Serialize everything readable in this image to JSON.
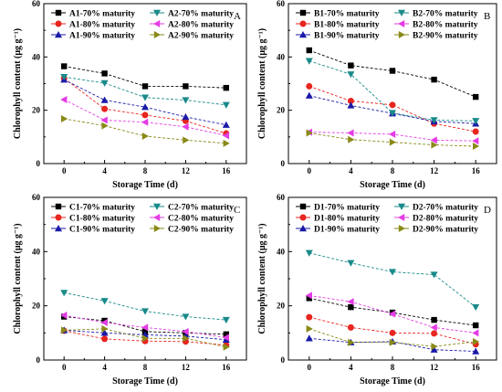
{
  "figure": {
    "title": ""
  },
  "chart_data": [
    {
      "panel": "A",
      "type": "line",
      "x": [
        0,
        4,
        8,
        12,
        16
      ],
      "xlabel": "Storage Time (d)",
      "ylabel": "Chlorophyll content (μg g⁻¹)",
      "xlim": [
        -2,
        18
      ],
      "ylim": [
        0,
        60
      ],
      "xticks": [
        0,
        4,
        8,
        12,
        16
      ],
      "yticks": [
        0,
        20,
        40,
        60
      ],
      "grid": false,
      "legend": "top-left, two columns",
      "series": [
        {
          "name": "A1-70% maturity",
          "values": [
            36.5,
            33.8,
            29.0,
            29.0,
            28.4
          ],
          "color": "#000000",
          "marker": "square"
        },
        {
          "name": "A1-80% maturity",
          "values": [
            32.0,
            20.5,
            18.2,
            16.0,
            11.3
          ],
          "color": "#e8251f",
          "marker": "circle"
        },
        {
          "name": "A1-90% maturity",
          "values": [
            31.5,
            23.8,
            21.2,
            17.5,
            14.5
          ],
          "color": "#1a1aa8",
          "marker": "triangle-up"
        },
        {
          "name": "A2-70% maturity",
          "values": [
            32.5,
            30.2,
            24.8,
            23.8,
            22.0
          ],
          "color": "#1a8a8a",
          "marker": "triangle-down"
        },
        {
          "name": "A2-80% maturity",
          "values": [
            24.0,
            16.3,
            15.5,
            13.8,
            10.5
          ],
          "color": "#e43ce4",
          "marker": "triangle-left"
        },
        {
          "name": "A2-90% maturity",
          "values": [
            16.8,
            14.2,
            10.3,
            8.8,
            7.6
          ],
          "color": "#8a8a18",
          "marker": "triangle-right"
        }
      ]
    },
    {
      "panel": "B",
      "type": "line",
      "x": [
        0,
        4,
        8,
        12,
        16
      ],
      "xlabel": "Storage Time (d)",
      "ylabel": "Chlorophyll content (μg g⁻¹)",
      "xlim": [
        -2,
        18
      ],
      "ylim": [
        0,
        60
      ],
      "xticks": [
        0,
        4,
        8,
        12,
        16
      ],
      "yticks": [
        0,
        20,
        40,
        60
      ],
      "grid": false,
      "legend": "top-left, two columns",
      "series": [
        {
          "name": "B1-70% maturity",
          "values": [
            42.5,
            36.8,
            34.8,
            31.5,
            25.0
          ],
          "color": "#000000",
          "marker": "square"
        },
        {
          "name": "B1-80% maturity",
          "values": [
            29.0,
            23.5,
            22.0,
            15.0,
            12.0
          ],
          "color": "#e8251f",
          "marker": "circle"
        },
        {
          "name": "B1-90% maturity",
          "values": [
            25.5,
            21.8,
            18.8,
            15.8,
            15.0
          ],
          "color": "#1a1aa8",
          "marker": "triangle-up"
        },
        {
          "name": "B2-70% maturity",
          "values": [
            38.5,
            33.5,
            19.0,
            16.3,
            16.0
          ],
          "color": "#1a8a8a",
          "marker": "triangle-down"
        },
        {
          "name": "B2-80% maturity",
          "values": [
            11.8,
            11.5,
            11.0,
            8.8,
            8.5
          ],
          "color": "#e43ce4",
          "marker": "triangle-left"
        },
        {
          "name": "B2-90% maturity",
          "values": [
            11.5,
            9.0,
            8.0,
            7.0,
            6.5
          ],
          "color": "#8a8a18",
          "marker": "triangle-right"
        }
      ]
    },
    {
      "panel": "C",
      "type": "line",
      "x": [
        0,
        4,
        8,
        12,
        16
      ],
      "xlabel": "Storage Time (d)",
      "ylabel": "Chlorophyll content (μg g⁻¹)",
      "xlim": [
        -2,
        18
      ],
      "ylim": [
        0,
        60
      ],
      "xticks": [
        0,
        4,
        8,
        12,
        16
      ],
      "yticks": [
        0,
        20,
        40,
        60
      ],
      "grid": false,
      "legend": "top-left, two columns",
      "series": [
        {
          "name": "C1-70% maturity",
          "values": [
            16.0,
            14.5,
            10.5,
            10.0,
            9.5
          ],
          "color": "#000000",
          "marker": "square"
        },
        {
          "name": "C1-80% maturity",
          "values": [
            10.8,
            7.8,
            7.0,
            6.8,
            5.5
          ],
          "color": "#e8251f",
          "marker": "circle"
        },
        {
          "name": "C1-90% maturity",
          "values": [
            11.0,
            10.0,
            9.3,
            8.8,
            7.5
          ],
          "color": "#1a1aa8",
          "marker": "triangle-up"
        },
        {
          "name": "C2-70% maturity",
          "values": [
            24.8,
            21.8,
            18.0,
            16.0,
            14.8
          ],
          "color": "#1a8a8a",
          "marker": "triangle-down"
        },
        {
          "name": "C2-80% maturity",
          "values": [
            16.5,
            13.8,
            12.0,
            10.5,
            8.3
          ],
          "color": "#e43ce4",
          "marker": "triangle-left"
        },
        {
          "name": "C2-90% maturity",
          "values": [
            11.0,
            11.5,
            8.0,
            8.0,
            4.8
          ],
          "color": "#8a8a18",
          "marker": "triangle-right"
        }
      ]
    },
    {
      "panel": "D",
      "type": "line",
      "x": [
        0,
        4,
        8,
        12,
        16
      ],
      "xlabel": "Storage Time (d)",
      "ylabel": "Chlorophyll content (μg g⁻¹)",
      "xlim": [
        -2,
        18
      ],
      "ylim": [
        0,
        60
      ],
      "xticks": [
        0,
        4,
        8,
        12,
        16
      ],
      "yticks": [
        0,
        20,
        40,
        60
      ],
      "grid": false,
      "legend": "top-left, two columns",
      "series": [
        {
          "name": "D1-70% maturity",
          "values": [
            22.8,
            19.5,
            17.5,
            14.8,
            12.8
          ],
          "color": "#000000",
          "marker": "square"
        },
        {
          "name": "D1-80% maturity",
          "values": [
            15.8,
            12.0,
            10.0,
            9.8,
            5.8
          ],
          "color": "#e8251f",
          "marker": "circle"
        },
        {
          "name": "D1-90% maturity",
          "values": [
            8.0,
            6.5,
            6.8,
            3.8,
            3.2
          ],
          "color": "#1a1aa8",
          "marker": "triangle-up"
        },
        {
          "name": "D2-70% maturity",
          "values": [
            39.5,
            35.8,
            32.5,
            31.5,
            19.5
          ],
          "color": "#1a8a8a",
          "marker": "triangle-down"
        },
        {
          "name": "D2-80% maturity",
          "values": [
            23.8,
            21.5,
            17.0,
            12.0,
            10.0
          ],
          "color": "#e43ce4",
          "marker": "triangle-left"
        },
        {
          "name": "D2-90% maturity",
          "values": [
            11.5,
            6.5,
            6.5,
            5.0,
            6.8
          ],
          "color": "#8a8a18",
          "marker": "triangle-right"
        }
      ]
    }
  ]
}
